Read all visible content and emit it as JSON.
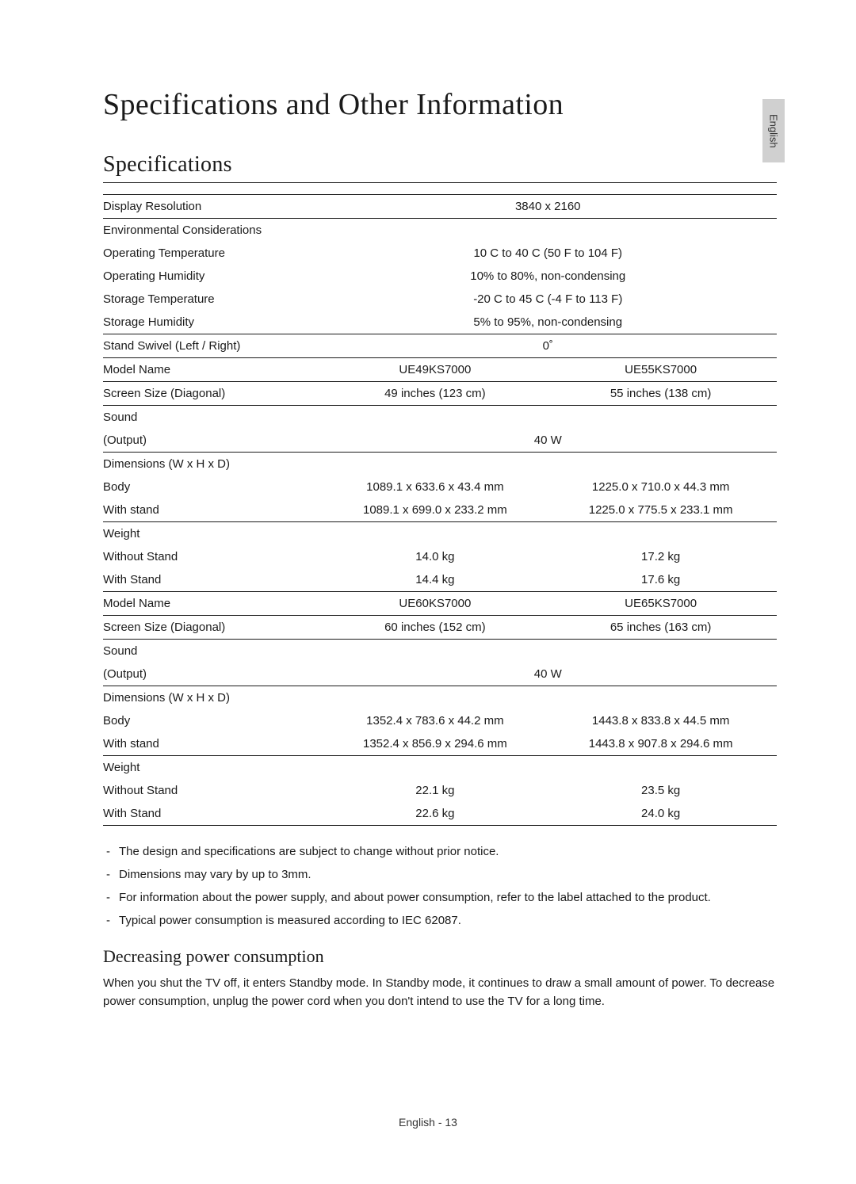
{
  "lang_tab": "English",
  "title": "Specifications and Other Information",
  "section_specs": "Specifications",
  "rows": {
    "display_res_label": "Display Resolution",
    "display_res_val": "3840 x 2160",
    "env_label": "Environmental Considerations",
    "op_temp_label": "Operating Temperature",
    "op_temp_val": "10 C to 40 C (50 F to 104 F)",
    "op_hum_label": "Operating Humidity",
    "op_hum_val": "10% to 80%, non-condensing",
    "st_temp_label": "Storage Temperature",
    "st_temp_val": "-20 C to 45 C (-4 F to 113 F)",
    "st_hum_label": "Storage Humidity",
    "st_hum_val": "5% to 95%, non-condensing",
    "swivel_label": "Stand Swivel (Left / Right)",
    "swivel_val": "0˚",
    "model_label": "Model Name",
    "model1_a": "UE49KS7000",
    "model1_b": "UE55KS7000",
    "screen_label": "Screen Size (Diagonal)",
    "screen1_a": "49 inches (123 cm)",
    "screen1_b": "55 inches (138 cm)",
    "sound_label": "Sound",
    "output_label": "(Output)",
    "output1_val": "40 W",
    "dim_label": "Dimensions (W x H x D)",
    "body_label": "Body",
    "body1_a": "1089.1 x 633.6 x 43.4 mm",
    "body1_b": "1225.0 x 710.0 x 44.3 mm",
    "wstand_label": "With stand",
    "wstand1_a": "1089.1 x 699.0 x 233.2 mm",
    "wstand1_b": "1225.0 x 775.5 x 233.1 mm",
    "weight_label": "Weight",
    "wo_stand_label": "Without Stand",
    "wo1_a": "14.0 kg",
    "wo1_b": "17.2 kg",
    "w_stand_label": "With Stand",
    "w1_a": "14.4 kg",
    "w1_b": "17.6 kg",
    "model2_a": "UE60KS7000",
    "model2_b": "UE65KS7000",
    "screen2_a": "60 inches (152 cm)",
    "screen2_b": "65 inches (163 cm)",
    "output2_val": "40 W",
    "body2_a": "1352.4 x 783.6 x 44.2 mm",
    "body2_b": "1443.8 x 833.8 x 44.5 mm",
    "wstand2_a": "1352.4 x 856.9 x 294.6 mm",
    "wstand2_b": "1443.8 x 907.8 x 294.6 mm",
    "wo2_a": "22.1 kg",
    "wo2_b": "23.5 kg",
    "w2_a": "22.6 kg",
    "w2_b": "24.0 kg"
  },
  "notes": [
    "The design and specifications are subject to change without prior notice.",
    "Dimensions may vary by up to 3mm.",
    "For information about the power supply, and about power consumption, refer to the label attached to the product.",
    "Typical power consumption is measured according to IEC 62087."
  ],
  "subsection_power": "Decreasing power consumption",
  "power_body": "When you shut the TV off, it enters Standby mode. In Standby mode, it continues to draw a small amount of power. To decrease power consumption, unplug the power cord when you don't intend to use the TV for a long time.",
  "footer": "English - 13"
}
